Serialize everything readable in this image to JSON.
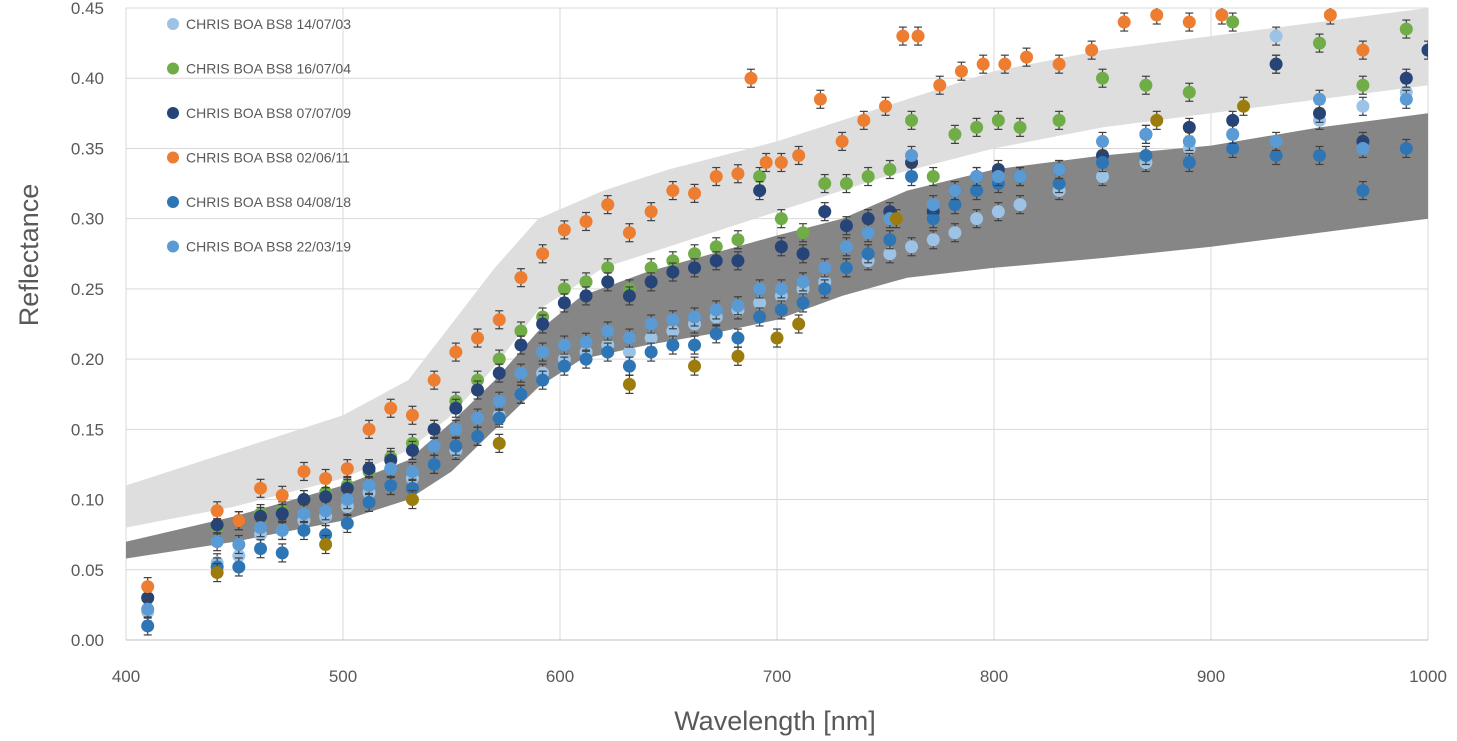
{
  "chart_data": {
    "type": "scatter",
    "title": "",
    "xlabel": "Wavelength [nm]",
    "ylabel": "Reflectance",
    "xlim": [
      400,
      1000
    ],
    "ylim": [
      0.0,
      0.45
    ],
    "x_ticks": [
      "400",
      "500",
      "600",
      "700",
      "800",
      "900",
      "1000"
    ],
    "y_ticks": [
      "0.00",
      "0.05",
      "0.10",
      "0.15",
      "0.20",
      "0.25",
      "0.30",
      "0.35",
      "0.40",
      "0.45"
    ],
    "grid": true,
    "legend_position": "top-left",
    "bands": [
      {
        "color": "#dcdcdc",
        "x": [
          400,
          450,
          500,
          530,
          550,
          570,
          590,
          620,
          650,
          700,
          750,
          800,
          850,
          900,
          950,
          1000
        ],
        "lower": [
          0.08,
          0.095,
          0.115,
          0.135,
          0.16,
          0.195,
          0.235,
          0.265,
          0.28,
          0.305,
          0.33,
          0.35,
          0.365,
          0.375,
          0.385,
          0.395
        ],
        "upper": [
          0.11,
          0.135,
          0.16,
          0.185,
          0.225,
          0.265,
          0.3,
          0.32,
          0.335,
          0.355,
          0.38,
          0.405,
          0.42,
          0.43,
          0.44,
          0.45
        ]
      },
      {
        "color": "#7f7f7f",
        "x": [
          400,
          450,
          500,
          530,
          550,
          570,
          590,
          610,
          640,
          670,
          700,
          730,
          760,
          800,
          850,
          900,
          950,
          1000
        ],
        "lower": [
          0.058,
          0.07,
          0.085,
          0.1,
          0.12,
          0.15,
          0.18,
          0.2,
          0.21,
          0.218,
          0.228,
          0.245,
          0.258,
          0.265,
          0.272,
          0.28,
          0.29,
          0.3
        ],
        "upper": [
          0.07,
          0.088,
          0.11,
          0.128,
          0.155,
          0.185,
          0.22,
          0.245,
          0.262,
          0.275,
          0.288,
          0.3,
          0.32,
          0.335,
          0.345,
          0.352,
          0.365,
          0.375
        ]
      }
    ],
    "series": [
      {
        "name": "CHRIS BOA BS8 14/07/03",
        "color": "#9cc3e5",
        "x": [
          410,
          442,
          452,
          462,
          472,
          482,
          492,
          502,
          512,
          522,
          532,
          542,
          552,
          562,
          572,
          582,
          592,
          602,
          612,
          622,
          632,
          642,
          652,
          662,
          672,
          682,
          692,
          702,
          712,
          722,
          732,
          742,
          752,
          762,
          772,
          782,
          792,
          802,
          812,
          830,
          850,
          870,
          890,
          910,
          930,
          950,
          970,
          990
        ],
        "y": [
          0.02,
          0.055,
          0.06,
          0.075,
          0.078,
          0.085,
          0.088,
          0.095,
          0.105,
          0.11,
          0.115,
          0.125,
          0.135,
          0.145,
          0.16,
          0.175,
          0.19,
          0.2,
          0.205,
          0.21,
          0.205,
          0.215,
          0.22,
          0.225,
          0.23,
          0.235,
          0.24,
          0.245,
          0.25,
          0.255,
          0.265,
          0.27,
          0.275,
          0.28,
          0.285,
          0.29,
          0.3,
          0.305,
          0.31,
          0.32,
          0.33,
          0.34,
          0.35,
          0.36,
          0.43,
          0.37,
          0.38,
          0.39
        ]
      },
      {
        "name": "CHRIS BOA BS8 16/07/04",
        "color": "#70ad47",
        "x": [
          410,
          442,
          452,
          462,
          472,
          482,
          492,
          502,
          512,
          522,
          532,
          542,
          552,
          562,
          572,
          582,
          592,
          602,
          612,
          622,
          632,
          642,
          652,
          662,
          672,
          682,
          692,
          702,
          712,
          722,
          732,
          742,
          752,
          762,
          772,
          782,
          792,
          802,
          812,
          830,
          850,
          870,
          890,
          910,
          930,
          950,
          970,
          990
        ],
        "y": [
          0.03,
          0.08,
          0.085,
          0.09,
          0.092,
          0.1,
          0.105,
          0.11,
          0.12,
          0.13,
          0.14,
          0.15,
          0.17,
          0.185,
          0.2,
          0.22,
          0.23,
          0.25,
          0.255,
          0.265,
          0.25,
          0.265,
          0.27,
          0.275,
          0.28,
          0.285,
          0.33,
          0.3,
          0.29,
          0.325,
          0.325,
          0.33,
          0.335,
          0.37,
          0.33,
          0.36,
          0.365,
          0.37,
          0.365,
          0.37,
          0.4,
          0.395,
          0.39,
          0.44,
          0.41,
          0.425,
          0.395,
          0.435
        ]
      },
      {
        "name": "CHRIS BOA BS8 07/07/09",
        "color": "#264478",
        "x": [
          410,
          442,
          452,
          462,
          472,
          482,
          492,
          502,
          512,
          522,
          532,
          542,
          552,
          562,
          572,
          582,
          592,
          602,
          612,
          622,
          632,
          642,
          652,
          662,
          672,
          682,
          692,
          702,
          712,
          722,
          732,
          742,
          752,
          762,
          772,
          782,
          792,
          802,
          812,
          830,
          850,
          870,
          890,
          910,
          930,
          950,
          970,
          990,
          1000
        ],
        "y": [
          0.03,
          0.082,
          0.085,
          0.088,
          0.09,
          0.1,
          0.102,
          0.108,
          0.122,
          0.128,
          0.135,
          0.15,
          0.165,
          0.178,
          0.19,
          0.21,
          0.225,
          0.24,
          0.245,
          0.255,
          0.245,
          0.255,
          0.262,
          0.265,
          0.27,
          0.27,
          0.32,
          0.28,
          0.275,
          0.305,
          0.295,
          0.3,
          0.305,
          0.34,
          0.305,
          0.32,
          0.33,
          0.335,
          0.33,
          0.335,
          0.345,
          0.36,
          0.365,
          0.37,
          0.41,
          0.375,
          0.355,
          0.4,
          0.42
        ]
      },
      {
        "name": "CHRIS BOA BS8 02/06/11",
        "color": "#ed7d31",
        "x": [
          410,
          442,
          452,
          462,
          472,
          482,
          492,
          502,
          512,
          522,
          532,
          542,
          552,
          562,
          572,
          582,
          592,
          602,
          612,
          622,
          632,
          642,
          652,
          662,
          672,
          682,
          688,
          695,
          702,
          710,
          720,
          730,
          740,
          750,
          758,
          765,
          775,
          785,
          795,
          805,
          815,
          830,
          845,
          860,
          875,
          890,
          905,
          955,
          970
        ],
        "y": [
          0.038,
          0.092,
          0.085,
          0.108,
          0.103,
          0.12,
          0.115,
          0.122,
          0.15,
          0.165,
          0.16,
          0.185,
          0.205,
          0.215,
          0.228,
          0.258,
          0.275,
          0.292,
          0.298,
          0.31,
          0.29,
          0.305,
          0.32,
          0.318,
          0.33,
          0.332,
          0.4,
          0.34,
          0.34,
          0.345,
          0.385,
          0.355,
          0.37,
          0.38,
          0.43,
          0.43,
          0.395,
          0.405,
          0.41,
          0.41,
          0.415,
          0.41,
          0.42,
          0.44,
          0.445,
          0.44,
          0.445,
          0.445,
          0.42
        ]
      },
      {
        "name": "CHRIS BOA BS8 04/08/18",
        "color": "#2e75b6",
        "x": [
          410,
          442,
          452,
          462,
          472,
          482,
          492,
          502,
          512,
          522,
          532,
          542,
          552,
          562,
          572,
          582,
          592,
          602,
          612,
          622,
          632,
          642,
          652,
          662,
          672,
          682,
          692,
          702,
          712,
          722,
          732,
          742,
          752,
          762,
          772,
          782,
          792,
          802,
          812,
          830,
          850,
          870,
          890,
          910,
          930,
          950,
          970,
          990
        ],
        "y": [
          0.01,
          0.052,
          0.052,
          0.065,
          0.062,
          0.078,
          0.075,
          0.083,
          0.098,
          0.11,
          0.108,
          0.125,
          0.138,
          0.145,
          0.158,
          0.175,
          0.185,
          0.195,
          0.2,
          0.205,
          0.195,
          0.205,
          0.21,
          0.21,
          0.218,
          0.215,
          0.23,
          0.235,
          0.24,
          0.25,
          0.265,
          0.275,
          0.285,
          0.33,
          0.3,
          0.31,
          0.32,
          0.325,
          0.33,
          0.325,
          0.34,
          0.345,
          0.34,
          0.35,
          0.345,
          0.345,
          0.32,
          0.35
        ]
      },
      {
        "name": "CHRIS BOA BS8 22/03/19",
        "color": "#5b9bd5",
        "x": [
          410,
          442,
          452,
          462,
          472,
          482,
          492,
          502,
          512,
          522,
          532,
          542,
          552,
          562,
          572,
          582,
          592,
          602,
          612,
          622,
          632,
          642,
          652,
          662,
          672,
          682,
          692,
          702,
          712,
          722,
          732,
          742,
          752,
          762,
          772,
          782,
          792,
          802,
          812,
          830,
          850,
          870,
          890,
          910,
          930,
          950,
          970,
          990
        ],
        "y": [
          0.022,
          0.07,
          0.068,
          0.08,
          0.078,
          0.09,
          0.092,
          0.1,
          0.11,
          0.122,
          0.12,
          0.138,
          0.15,
          0.158,
          0.17,
          0.19,
          0.205,
          0.21,
          0.212,
          0.22,
          0.215,
          0.225,
          0.228,
          0.23,
          0.235,
          0.238,
          0.25,
          0.25,
          0.255,
          0.265,
          0.28,
          0.29,
          0.3,
          0.345,
          0.31,
          0.32,
          0.33,
          0.33,
          0.33,
          0.335,
          0.355,
          0.36,
          0.355,
          0.36,
          0.355,
          0.385,
          0.35,
          0.385
        ]
      },
      {
        "name": "",
        "color": "#9c7c0c",
        "x": [
          442,
          492,
          532,
          572,
          632,
          662,
          682,
          700,
          710,
          755,
          875,
          915
        ],
        "y": [
          0.048,
          0.068,
          0.1,
          0.14,
          0.182,
          0.195,
          0.202,
          0.215,
          0.225,
          0.3,
          0.37,
          0.38
        ]
      }
    ]
  }
}
